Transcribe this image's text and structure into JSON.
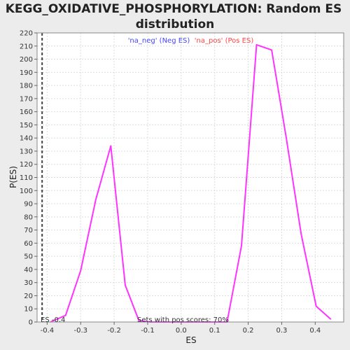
{
  "chart_data": {
    "type": "line",
    "title_line1": "KEGG_OXIDATIVE_PHOSPHORYLATION: Random ES",
    "title_line2": "distribution",
    "xlabel": "ES",
    "ylabel": "P(ES)",
    "xlim": [
      -0.43,
      0.485
    ],
    "ylim": [
      0,
      220
    ],
    "xticks": [
      -0.4,
      -0.3,
      -0.2,
      -0.1,
      0.0,
      0.1,
      0.2,
      0.3,
      0.4
    ],
    "xtick_labels": [
      "-0.4",
      "-0.3",
      "-0.2",
      "-0.1",
      "0.0",
      "0.1",
      "0.2",
      "0.3",
      "0.4"
    ],
    "yticks": [
      0,
      10,
      20,
      30,
      40,
      50,
      60,
      70,
      80,
      90,
      100,
      110,
      120,
      130,
      140,
      150,
      160,
      170,
      180,
      190,
      200,
      210,
      220
    ],
    "ytick_labels": [
      "0",
      "10",
      "20",
      "30",
      "40",
      "50",
      "60",
      "70",
      "80",
      "90",
      "100",
      "110",
      "120",
      "130",
      "140",
      "150",
      "160",
      "170",
      "180",
      "190",
      "200",
      "210",
      "220"
    ],
    "grid": true,
    "legend": {
      "placement": "top-center",
      "entries": [
        {
          "label": "'na_neg' (Neg ES)",
          "color": "#4444ff"
        },
        {
          "label": "'na_pos' (Pos ES)",
          "color": "#ff4444"
        }
      ]
    },
    "series": [
      {
        "color": "#ff33ff",
        "x": [
          -0.39,
          -0.345,
          -0.3,
          -0.255,
          -0.21,
          -0.167,
          -0.126,
          -0.09,
          0.0,
          0.09,
          0.137,
          0.18,
          0.225,
          0.27,
          0.313,
          0.358,
          0.403,
          0.447
        ],
        "y": [
          0,
          5,
          39,
          93,
          134,
          28,
          1,
          0,
          0,
          0,
          0,
          58,
          211,
          207,
          141,
          67,
          12,
          2
        ]
      }
    ],
    "marker_line": {
      "x": -0.415,
      "style": "dashed",
      "color": "#444444"
    },
    "annotations": {
      "es_label": "ES -0.4",
      "pos_scores": "Sets with pos scores: 70%"
    }
  }
}
